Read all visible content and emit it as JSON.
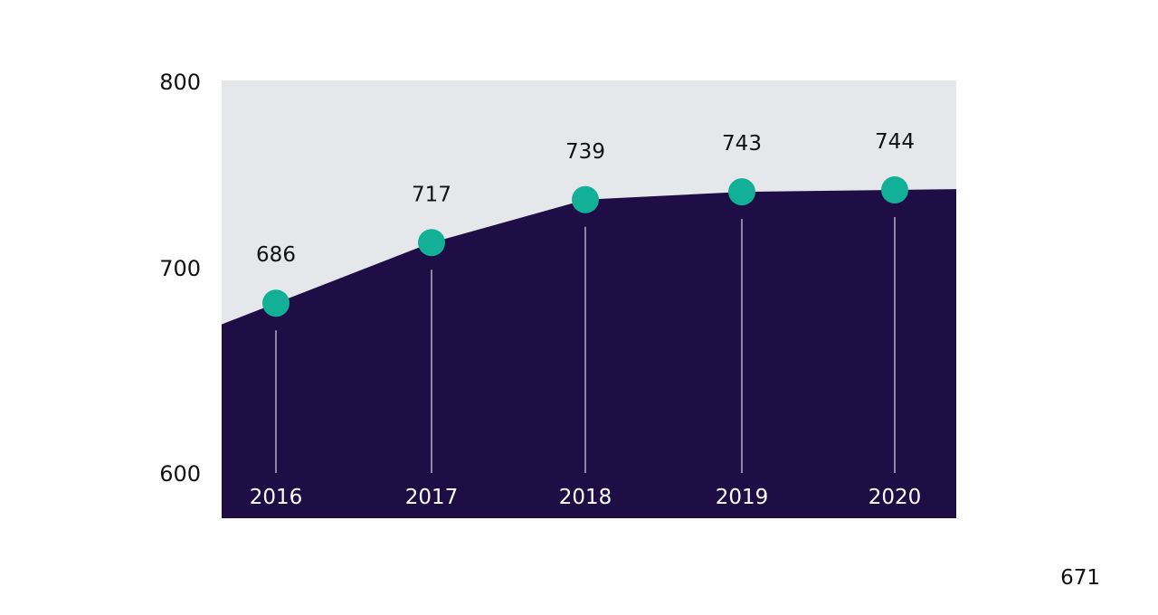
{
  "chart_data": {
    "type": "area",
    "x": [
      "2016",
      "2017",
      "2018",
      "2019",
      "2020"
    ],
    "values": [
      686,
      717,
      739,
      743,
      744
    ],
    "y_ticks": [
      "800",
      "700",
      "600"
    ],
    "ylim": [
      600,
      800
    ],
    "grid": false,
    "colors": {
      "area": "#1e0e45",
      "background_band": "#e6e7ea",
      "marker": "#12b096",
      "stem": "#ffffff"
    }
  },
  "footer": {
    "corner_number": "671"
  }
}
